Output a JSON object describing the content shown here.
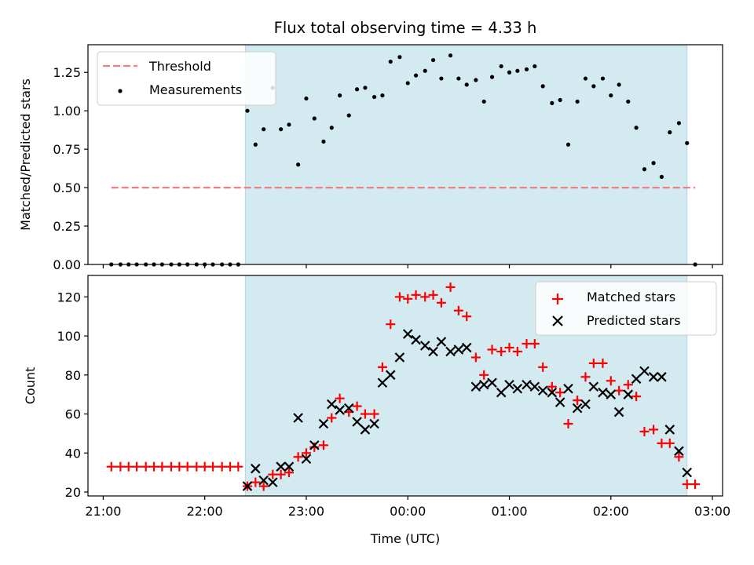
{
  "chart_data": [
    {
      "type": "scatter",
      "title": "Flux total observing time = 4.33 h",
      "ylabel": "Matched/Predicted stars",
      "xlabel": "",
      "ylim": [
        0,
        1.43
      ],
      "yticks": [
        "0.00",
        "0.25",
        "0.50",
        "0.75",
        "1.00",
        "1.25"
      ],
      "ytick_values": [
        0,
        0.25,
        0.5,
        0.75,
        1.0,
        1.25
      ],
      "shaded_interval_hours": [
        22.4,
        26.75
      ],
      "shaded_color": "#d3eaf1",
      "legend_position": "upper-left",
      "threshold": {
        "name": "Threshold",
        "value": 0.5,
        "x_range_hours": [
          21.08,
          26.83
        ],
        "color": "#f08080"
      },
      "series": [
        {
          "name": "Measurements",
          "color": "#000000",
          "x_hours": [
            21.08,
            21.17,
            21.25,
            21.33,
            21.42,
            21.5,
            21.58,
            21.67,
            21.75,
            21.83,
            21.92,
            22.0,
            22.08,
            22.17,
            22.25,
            22.33,
            22.42,
            22.5,
            22.58,
            22.67,
            22.75,
            22.83,
            22.92,
            23.0,
            23.08,
            23.17,
            23.25,
            23.33,
            23.42,
            23.5,
            23.58,
            23.67,
            23.75,
            23.83,
            23.92,
            24.0,
            24.08,
            24.17,
            24.25,
            24.33,
            24.42,
            24.5,
            24.58,
            24.67,
            24.75,
            24.83,
            24.92,
            25.0,
            25.08,
            25.17,
            25.25,
            25.33,
            25.42,
            25.5,
            25.58,
            25.67,
            25.75,
            25.83,
            25.92,
            26.0,
            26.08,
            26.17,
            26.25,
            26.33,
            26.42,
            26.5,
            26.58,
            26.67,
            26.75,
            26.83
          ],
          "y": [
            0,
            0,
            0,
            0,
            0,
            0,
            0,
            0,
            0,
            0,
            0,
            0,
            0,
            0,
            0,
            0,
            1.0,
            0.78,
            0.88,
            1.15,
            0.88,
            0.91,
            0.65,
            1.08,
            0.95,
            0.8,
            0.89,
            1.1,
            0.97,
            1.14,
            1.15,
            1.09,
            1.1,
            1.32,
            1.35,
            1.18,
            1.23,
            1.26,
            1.33,
            1.21,
            1.36,
            1.21,
            1.17,
            1.2,
            1.06,
            1.22,
            1.29,
            1.25,
            1.26,
            1.27,
            1.29,
            1.16,
            1.05,
            1.07,
            0.78,
            1.06,
            1.21,
            1.16,
            1.21,
            1.1,
            1.17,
            1.06,
            0.89,
            0.62,
            0.66,
            0.57,
            0.86,
            0.92,
            0.79,
            0
          ]
        }
      ]
    },
    {
      "type": "scatter",
      "title": "",
      "ylabel": "Count",
      "xlabel": "Time (UTC)",
      "ylim": [
        18,
        131
      ],
      "yticks": [
        "20",
        "40",
        "60",
        "80",
        "100",
        "120"
      ],
      "ytick_values": [
        20,
        40,
        60,
        80,
        100,
        120
      ],
      "xlim_hours": [
        20.85,
        27.1
      ],
      "xticks": [
        "21:00",
        "22:00",
        "23:00",
        "00:00",
        "01:00",
        "02:00",
        "03:00"
      ],
      "xtick_values_hours": [
        21,
        22,
        23,
        24,
        25,
        26,
        27
      ],
      "shaded_interval_hours": [
        22.4,
        26.75
      ],
      "legend_position": "upper-right",
      "series": [
        {
          "name": "Matched stars",
          "color": "#ff0000",
          "marker": "plus",
          "x_hours": [
            21.08,
            21.17,
            21.25,
            21.33,
            21.42,
            21.5,
            21.58,
            21.67,
            21.75,
            21.83,
            21.92,
            22.0,
            22.08,
            22.17,
            22.25,
            22.33,
            22.42,
            22.5,
            22.58,
            22.67,
            22.75,
            22.83,
            22.92,
            23.0,
            23.08,
            23.17,
            23.25,
            23.33,
            23.42,
            23.5,
            23.58,
            23.67,
            23.75,
            23.83,
            23.92,
            24.0,
            24.08,
            24.17,
            24.25,
            24.33,
            24.42,
            24.5,
            24.58,
            24.67,
            24.75,
            24.83,
            24.92,
            25.0,
            25.08,
            25.17,
            25.25,
            25.33,
            25.42,
            25.5,
            25.58,
            25.67,
            25.75,
            25.83,
            25.92,
            26.0,
            26.08,
            26.17,
            26.25,
            26.33,
            26.42,
            26.5,
            26.58,
            26.67,
            26.75,
            26.83
          ],
          "y": [
            33,
            33,
            33,
            33,
            33,
            33,
            33,
            33,
            33,
            33,
            33,
            33,
            33,
            33,
            33,
            33,
            23,
            25,
            23,
            29,
            29,
            30,
            38,
            40,
            43,
            44,
            58,
            68,
            61,
            64,
            60,
            60,
            84,
            106,
            120,
            119,
            121,
            120,
            121,
            117,
            125,
            113,
            110,
            89,
            80,
            93,
            92,
            94,
            92,
            96,
            96,
            84,
            74,
            71,
            55,
            67,
            79,
            86,
            86,
            77,
            72,
            75,
            69,
            51,
            52,
            45,
            45,
            38,
            24,
            24
          ]
        },
        {
          "name": "Predicted stars",
          "color": "#000000",
          "marker": "x",
          "x_hours": [
            22.42,
            22.5,
            22.58,
            22.67,
            22.75,
            22.83,
            22.92,
            23.0,
            23.08,
            23.17,
            23.25,
            23.33,
            23.42,
            23.5,
            23.58,
            23.67,
            23.75,
            23.83,
            23.92,
            24.0,
            24.08,
            24.17,
            24.25,
            24.33,
            24.42,
            24.5,
            24.58,
            24.67,
            24.75,
            24.83,
            24.92,
            25.0,
            25.08,
            25.17,
            25.25,
            25.33,
            25.42,
            25.5,
            25.58,
            25.67,
            25.75,
            25.83,
            25.92,
            26.0,
            26.08,
            26.17,
            26.25,
            26.33,
            26.42,
            26.5,
            26.58,
            26.67,
            26.75
          ],
          "y": [
            23,
            32,
            26,
            25,
            33,
            33,
            58,
            37,
            44,
            55,
            65,
            62,
            63,
            56,
            52,
            55,
            76,
            80,
            89,
            101,
            98,
            95,
            92,
            97,
            92,
            93,
            94,
            74,
            75,
            76,
            71,
            75,
            73,
            75,
            74,
            72,
            71,
            66,
            73,
            63,
            65,
            74,
            71,
            70,
            61,
            70,
            78,
            82,
            79,
            79,
            52,
            41,
            30
          ]
        }
      ]
    }
  ]
}
